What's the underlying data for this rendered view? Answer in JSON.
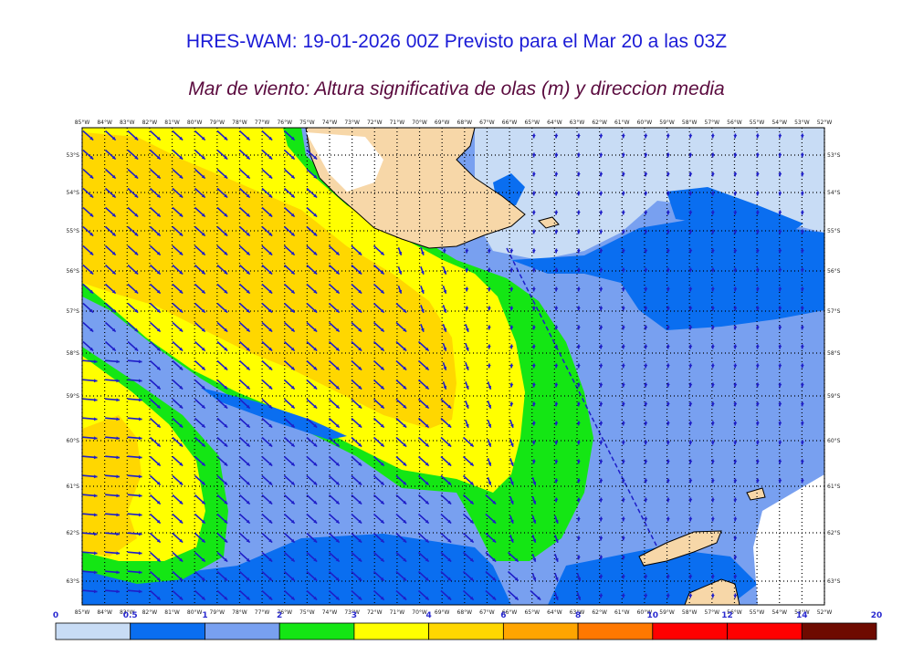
{
  "title": "HRES-WAM: 19-01-2026 00Z Previsto para el Mar 20 a las 03Z",
  "subtitle": "Mar de viento: Altura significativa de olas (m) y direccion media",
  "lon_labels": [
    "85°W",
    "84°W",
    "83°W",
    "82°W",
    "81°W",
    "80°W",
    "79°W",
    "78°W",
    "77°W",
    "76°W",
    "75°W",
    "74°W",
    "73°W",
    "72°W",
    "71°W",
    "70°W",
    "69°W",
    "68°W",
    "67°W",
    "66°W",
    "65°W",
    "64°W",
    "63°W",
    "62°W",
    "61°W",
    "60°W",
    "59°W",
    "58°W",
    "57°W",
    "56°W",
    "55°W",
    "54°W",
    "53°W",
    "52°W"
  ],
  "lat_labels": [
    "53°S",
    "54°S",
    "55°S",
    "56°S",
    "57°S",
    "58°S",
    "59°S",
    "60°S",
    "61°S",
    "62°S",
    "63°S"
  ],
  "colorbar": {
    "ticks": [
      "0",
      "0.5",
      "1",
      "2",
      "3",
      "4",
      "6",
      "8",
      "10",
      "12",
      "14",
      "20"
    ],
    "colors": [
      "#c8dcf5",
      "#0a6ef0",
      "#78a0f0",
      "#14e614",
      "#ffff00",
      "#ffd700",
      "#ffa500",
      "#ff7800",
      "#ff0000",
      "#ff0000",
      "#6e0a00",
      "#2d2d2d"
    ]
  },
  "legend_colors": {
    "land": "#f7d7a8",
    "ice_white": "#ffffff",
    "arrow": "#1e1ec8"
  }
}
